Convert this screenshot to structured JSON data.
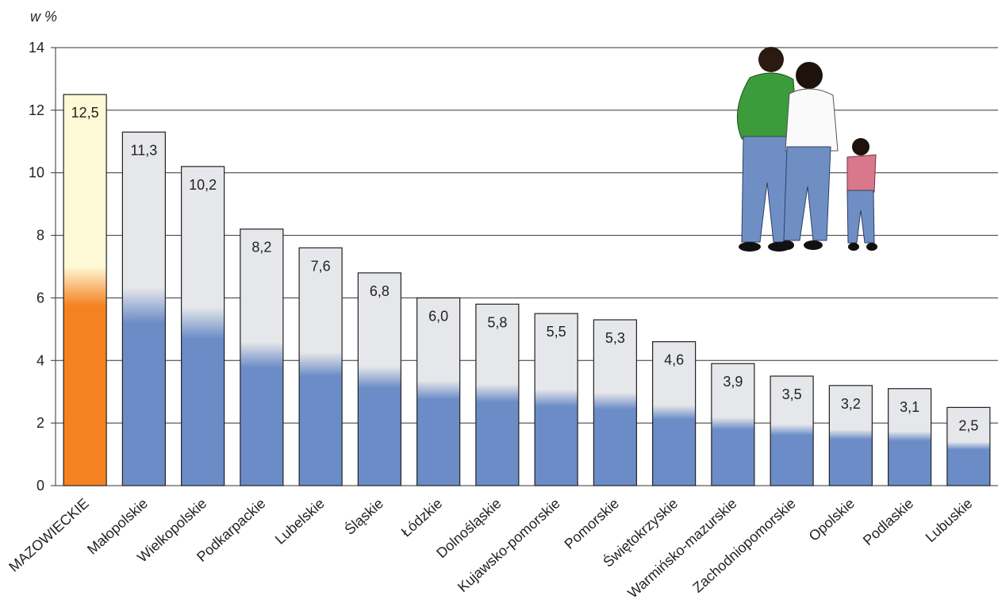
{
  "chart_data": {
    "type": "bar",
    "y_axis_label": "w %",
    "categories": [
      "MAZOWIECKIE",
      "Małopolskie",
      "Wielkopolskie",
      "Podkarpackie",
      "Lubelskie",
      "Śląskie",
      "Łódzkie",
      "Dolnośląskie",
      "Kujawsko-pomorskie",
      "Pomorskie",
      "Świętokrzyskie",
      "Warmińsko-mazurskie",
      "Zachodniopomorskie",
      "Opolskie",
      "Podlaskie",
      "Lubuskie"
    ],
    "values": [
      12.5,
      11.3,
      10.2,
      8.2,
      7.6,
      6.8,
      6.0,
      5.8,
      5.5,
      5.3,
      4.6,
      3.9,
      3.5,
      3.2,
      3.1,
      2.5
    ],
    "value_labels": [
      "12,5",
      "11,3",
      "10,2",
      "8,2",
      "7,6",
      "6,8",
      "6,0",
      "5,8",
      "5,5",
      "5,3",
      "4,6",
      "3,9",
      "3,5",
      "3,2",
      "3,1",
      "2,5"
    ],
    "colors": [
      "#f58220",
      "#6b8cc7",
      "#6b8cc7",
      "#6b8cc7",
      "#6b8cc7",
      "#6b8cc7",
      "#6b8cc7",
      "#6b8cc7",
      "#6b8cc7",
      "#6b8cc7",
      "#6b8cc7",
      "#6b8cc7",
      "#6b8cc7",
      "#6b8cc7",
      "#6b8cc7",
      "#6b8cc7"
    ],
    "top_colors": [
      "#fdf8d6",
      "#e6e7ea",
      "#e6e7ea",
      "#e6e7ea",
      "#e6e7ea",
      "#e6e7ea",
      "#e6e7ea",
      "#e6e7ea",
      "#e6e7ea",
      "#e6e7ea",
      "#e6e7ea",
      "#e6e7ea",
      "#e6e7ea",
      "#e6e7ea",
      "#e6e7ea",
      "#e6e7ea"
    ],
    "ylim": [
      0,
      14
    ],
    "yticks": [
      0,
      2,
      4,
      6,
      8,
      10,
      12,
      14
    ],
    "grid": true
  }
}
